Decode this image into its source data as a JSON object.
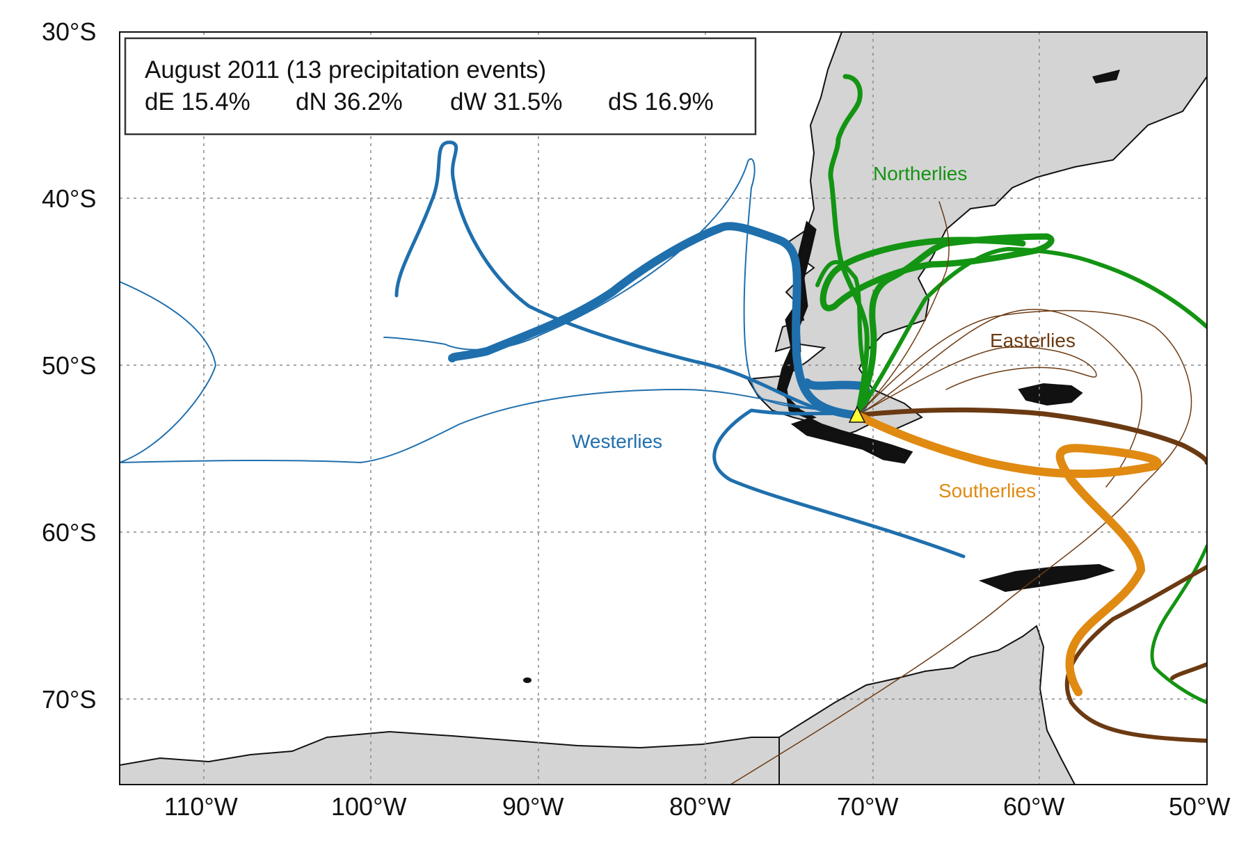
{
  "info_box": {
    "title": "August 2011 (13 precipitation events)",
    "stats": [
      "dE 15.4%",
      "dN 36.2%",
      "dW 31.5%",
      "dS 16.9%"
    ]
  },
  "axes": {
    "lat_ticks": [
      "30°S",
      "40°S",
      "50°S",
      "60°S",
      "70°S"
    ],
    "lon_ticks": [
      "110°W",
      "100°W",
      "90°W",
      "80°W",
      "70°W",
      "60°W",
      "50°W"
    ]
  },
  "regions": {
    "westerlies": "Westerlies",
    "northerlies": "Northerlies",
    "easterlies": "Easterlies",
    "southerlies": "Southerlies"
  },
  "colors": {
    "land": "#d4d4d4",
    "westerlies": "#1f6fad",
    "northerlies": "#139413",
    "easterlies": "#6b3a12",
    "southerlies": "#e08a12",
    "site_marker": "#ffff33"
  },
  "chart_data": {
    "type": "map",
    "lon_range": [
      -115,
      -50
    ],
    "lat_range": [
      -75,
      -30
    ],
    "grid": true,
    "site_marker": {
      "lon": -70.8,
      "lat": -53.1,
      "shape": "triangle"
    },
    "trajectory_groups": [
      "westerlies",
      "northerlies",
      "easterlies",
      "southerlies"
    ]
  }
}
